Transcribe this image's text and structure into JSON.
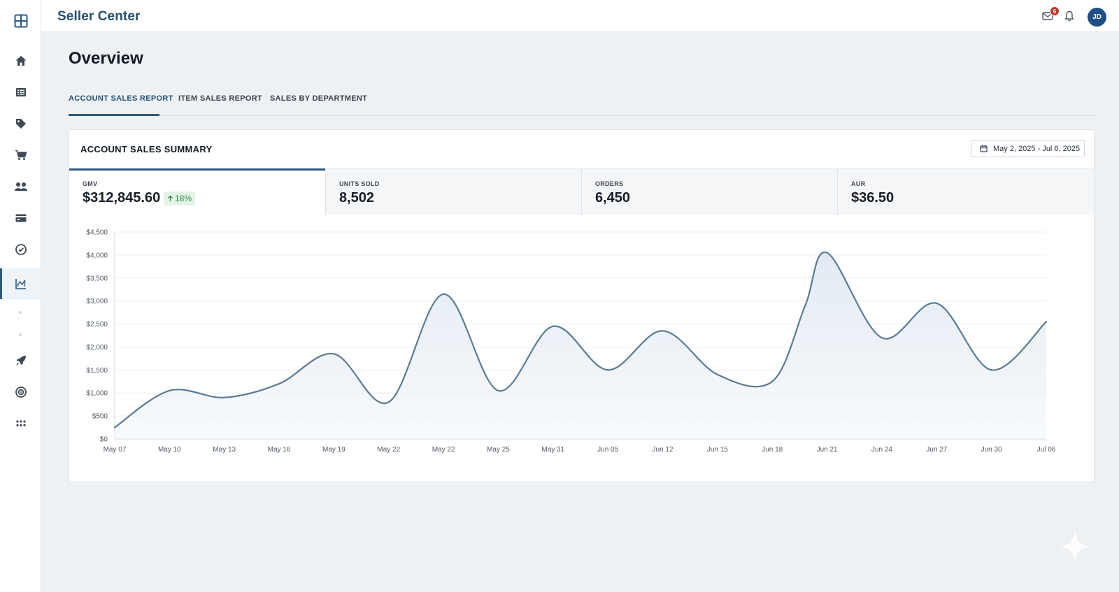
{
  "header": {
    "brand": "Seller Center",
    "mail_count": "6",
    "avatar_initials": "JD"
  },
  "sidebar": {
    "items": [
      {
        "icon": "home-icon"
      },
      {
        "icon": "list-icon"
      },
      {
        "icon": "tag-icon"
      },
      {
        "icon": "cart-icon"
      },
      {
        "icon": "people-icon"
      },
      {
        "icon": "card-icon"
      },
      {
        "icon": "check-circle-icon"
      },
      {
        "icon": "analytics-icon",
        "active": true
      },
      {
        "icon": "rocket-icon"
      },
      {
        "icon": "target-icon"
      },
      {
        "icon": "apps-grid-icon"
      }
    ]
  },
  "page": {
    "title": "Overview",
    "tabs": [
      {
        "label": "ACCOUNT SALES REPORT",
        "active": true
      },
      {
        "label": "ITEM SALES REPORT"
      },
      {
        "label": "SALES BY DEPARTMENT"
      }
    ]
  },
  "card": {
    "title": "ACCOUNT SALES SUMMARY",
    "date_range": "May 2, 2025 - Jul 6, 2025",
    "metrics": [
      {
        "label": "GMV",
        "value": "$312,845.60",
        "change": "18%",
        "active": true
      },
      {
        "label": "UNITS SOLD",
        "value": "8,502"
      },
      {
        "label": "ORDERS",
        "value": "6,450"
      },
      {
        "label": "AUR",
        "value": "$36.50"
      }
    ]
  },
  "colors": {
    "accent": "#2c5a82",
    "line": "#5a7b96",
    "badge_bg": "#e3f3e6",
    "badge_text": "#2b8a43"
  },
  "chart_data": {
    "type": "area",
    "categories": [
      "May 07",
      "May 10",
      "May 13",
      "May 16",
      "May 19",
      "May 22",
      "May 22",
      "May 25",
      "May 31",
      "Jun 05",
      "Jun 12",
      "Jun 15",
      "Jun 18",
      "Jun 21",
      "Jun 24",
      "Jun 27",
      "Jun 30",
      "Jul 06"
    ],
    "yticks": [
      "$0",
      "$500",
      "$1,000",
      "$1,500",
      "$2,000",
      "$2,500",
      "$3,000",
      "$3,500",
      "$4,000",
      "$4,500"
    ],
    "ylim": [
      0,
      4500
    ],
    "grid": true,
    "points": [
      [
        0,
        250
      ],
      [
        1,
        1050
      ],
      [
        2,
        900
      ],
      [
        3,
        1200
      ],
      [
        4,
        1850
      ],
      [
        5,
        800
      ],
      [
        6,
        3150
      ],
      [
        7,
        1050
      ],
      [
        8,
        2450
      ],
      [
        9,
        1500
      ],
      [
        10,
        2350
      ],
      [
        11,
        1400
      ],
      [
        12,
        1250
      ],
      [
        12.6,
        2900
      ],
      [
        13,
        4050
      ],
      [
        14,
        2200
      ],
      [
        15,
        2950
      ],
      [
        16,
        1500
      ],
      [
        17,
        2550
      ]
    ]
  }
}
